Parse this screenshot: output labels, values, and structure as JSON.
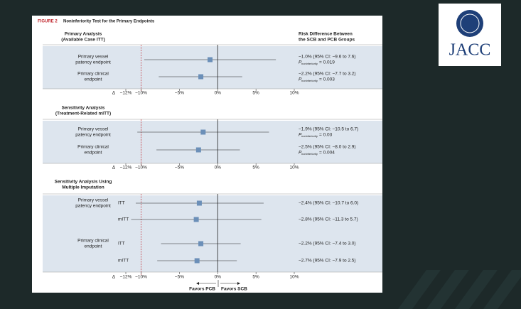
{
  "header": {
    "figure": "FIGURE 2",
    "title": "Noninferiority Test for the Primary Endpoints"
  },
  "logo": "JACC",
  "column_header": [
    "Risk Difference Between",
    "the SCB and PCB Groups"
  ],
  "p_symbol": "P",
  "p_subscript": "noninferiority",
  "favors": [
    "Favors PCB",
    "Favors SCB"
  ],
  "chart_data": [
    {
      "type": "forest",
      "title": [
        "Primary Analysis",
        "(Available Case ITT)"
      ],
      "xlim": [
        -12,
        10
      ],
      "margin": -10,
      "delta_label": "Δ",
      "xticks": [
        {
          "value": -12,
          "label": "−12%"
        },
        {
          "value": -10,
          "label": "−10%"
        },
        {
          "value": -5,
          "label": "−5%"
        },
        {
          "value": 0,
          "label": "0%"
        },
        {
          "value": 5,
          "label": "5%"
        },
        {
          "value": 10,
          "label": "10%"
        }
      ],
      "color": "#6b8fb8",
      "rows": [
        {
          "label": [
            "Primary vessel",
            "patency endpoint"
          ],
          "value": -1.0,
          "ci": [
            -9.6,
            7.6
          ],
          "value_label": "−1.0% (95% CI: −9.6 to 7.6)",
          "p_label": "= 0.019"
        },
        {
          "label": [
            "Primary clinical",
            "endpoint"
          ],
          "value": -2.2,
          "ci": [
            -7.7,
            3.2
          ],
          "value_label": "−2.2% (95% CI: −7.7 to 3.2)",
          "p_label": "= 0.003"
        }
      ]
    },
    {
      "type": "forest",
      "title": [
        "Sensitivity Analysis",
        "(Treatment-Related mITT)"
      ],
      "xlim": [
        -12,
        10
      ],
      "margin": -10,
      "delta_label": "Δ",
      "xticks": [
        {
          "value": -12,
          "label": "−12%"
        },
        {
          "value": -10,
          "label": "−10%"
        },
        {
          "value": -5,
          "label": "−5%"
        },
        {
          "value": 0,
          "label": "0%"
        },
        {
          "value": 5,
          "label": "5%"
        },
        {
          "value": 10,
          "label": "10%"
        }
      ],
      "color": "#6b8fb8",
      "rows": [
        {
          "label": [
            "Primary vessel",
            "patency endpoint"
          ],
          "value": -1.9,
          "ci": [
            -10.5,
            6.7
          ],
          "value_label": "−1.9% (95% CI: −10.5 to 6.7)",
          "p_label": "= 0.03"
        },
        {
          "label": [
            "Primary clinical",
            "endpoint"
          ],
          "value": -2.5,
          "ci": [
            -8.0,
            2.9
          ],
          "value_label": "−2.5% (95% CI: −8.0 to 2.9)",
          "p_label": "= 0.004"
        }
      ]
    },
    {
      "type": "forest",
      "title": [
        "Sensitivity Analysis Using",
        "Multiple Imputation"
      ],
      "xlim": [
        -12,
        10
      ],
      "margin": -10,
      "delta_label": "Δ",
      "xticks": [
        {
          "value": -12,
          "label": "−12%"
        },
        {
          "value": -10,
          "label": "−10%"
        },
        {
          "value": -5,
          "label": "−5%"
        },
        {
          "value": 0,
          "label": "0%"
        },
        {
          "value": 5,
          "label": "5%"
        },
        {
          "value": 10,
          "label": "10%"
        }
      ],
      "color": "#6b8fb8",
      "rows": [
        {
          "label": [
            "Primary vessel",
            "patency endpoint"
          ],
          "subgroup": "ITT",
          "value": -2.4,
          "ci": [
            -10.7,
            6.0
          ],
          "value_label": "−2.4% (95% CI: −10.7 to 6.0)"
        },
        {
          "subgroup": "mITT",
          "value": -2.8,
          "ci": [
            -11.3,
            5.7
          ],
          "value_label": "−2.8% (95% CI: −11.3 to 5.7)"
        },
        {
          "label": [
            "Primary clinical",
            "endpoint"
          ],
          "subgroup": "ITT",
          "value": -2.2,
          "ci": [
            -7.4,
            3.0
          ],
          "value_label": "−2.2% (95% CI: −7.4 to 3.0)"
        },
        {
          "subgroup": "mITT",
          "value": -2.7,
          "ci": [
            -7.9,
            2.5
          ],
          "value_label": "−2.7% (95% CI: −7.9 to 2.5)"
        }
      ]
    }
  ]
}
